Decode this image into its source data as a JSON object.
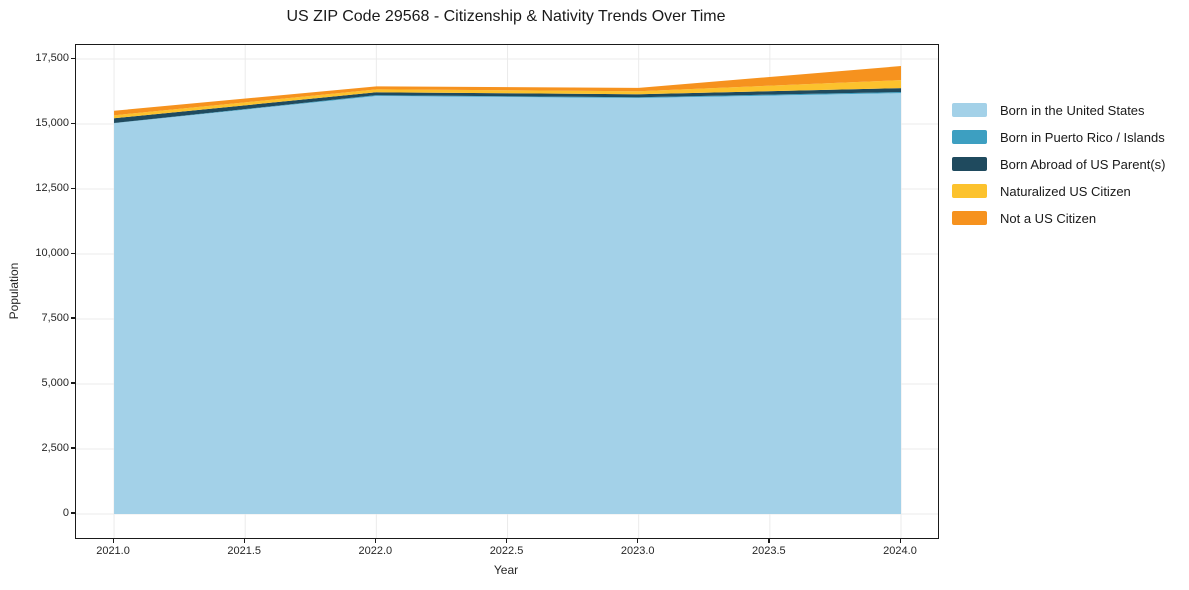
{
  "page": {
    "background": "#ffffff"
  },
  "chart_data": {
    "type": "area",
    "stacked": true,
    "title": "US ZIP Code 29568 - Citizenship & Nativity Trends Over Time",
    "xlabel": "Year",
    "ylabel": "Population",
    "x": [
      2021,
      2022,
      2023,
      2024
    ],
    "series": [
      {
        "name": "Born in the United States",
        "color": "#a3d1e8",
        "values": [
          15030,
          16080,
          16000,
          16190
        ]
      },
      {
        "name": "Born in Puerto Rico / Islands",
        "color": "#3d9fc1",
        "values": [
          10,
          30,
          30,
          40
        ]
      },
      {
        "name": "Born Abroad of US Parent(s)",
        "color": "#1f4a5e",
        "values": [
          180,
          110,
          115,
          150
        ]
      },
      {
        "name": "Naturalized US Citizen",
        "color": "#fcc22d",
        "values": [
          115,
          115,
          115,
          310
        ]
      },
      {
        "name": "Not a US Citizen",
        "color": "#f6921e",
        "values": [
          175,
          115,
          130,
          540
        ]
      }
    ],
    "totals_by_year": [
      15510,
      16450,
      16390,
      17230
    ],
    "xlim": [
      2020.855,
      2024.141
    ],
    "ylim": [
      -925,
      18040
    ],
    "xticks": {
      "values": [
        2021.0,
        2021.5,
        2022.0,
        2022.5,
        2023.0,
        2023.5,
        2024.0
      ],
      "labels": [
        "2021.0",
        "2021.5",
        "2022.0",
        "2022.5",
        "2023.0",
        "2023.5",
        "2024.0"
      ]
    },
    "yticks": {
      "values": [
        0,
        2500,
        5000,
        7500,
        10000,
        12500,
        15000,
        17500
      ],
      "labels": [
        "0",
        "2,500",
        "5,000",
        "7,500",
        "10,000",
        "12,500",
        "15,000",
        "17,500"
      ]
    },
    "grid": true,
    "grid_color": "#ebebeb",
    "axis_color": "#1a1a1a",
    "tick_label_color": "#262626",
    "legend_position": "right-outside"
  }
}
